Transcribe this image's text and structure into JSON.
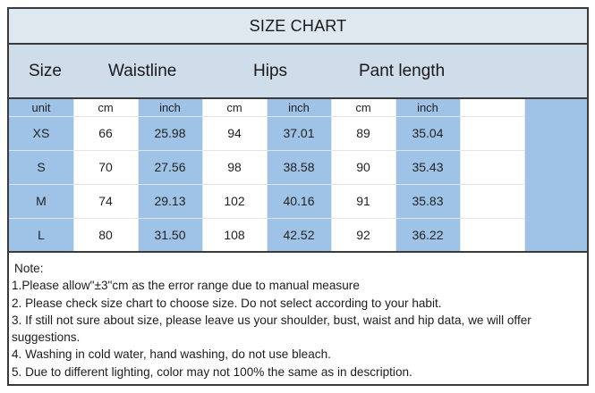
{
  "title": "SIZE CHART",
  "headers": {
    "size": "Size",
    "waistline": "Waistline",
    "hips": "Hips",
    "pant_length": "Pant length"
  },
  "unit_row": [
    "unit",
    "cm",
    "inch",
    "cm",
    "inch",
    "cm",
    "inch"
  ],
  "rows": [
    [
      "XS",
      "66",
      "25.98",
      "94",
      "37.01",
      "89",
      "35.04"
    ],
    [
      "S",
      "70",
      "27.56",
      "98",
      "38.58",
      "90",
      "35.43"
    ],
    [
      "M",
      "74",
      "29.13",
      "102",
      "40.16",
      "91",
      "35.83"
    ],
    [
      "L",
      "80",
      "31.50",
      "108",
      "42.52",
      "92",
      "36.22"
    ]
  ],
  "notes": {
    "heading": "Note:",
    "line1": "1.Please allow\"±3\"cm as the error range due to manual measure",
    "line2": "2. Please check size chart to choose size. Do not select according to your habit.",
    "line3a": "3. If still not sure about size, please leave us your shoulder, bust, waist and hip data, we will offer",
    "line3b": "suggestions.",
    "line4": "4. Washing in cold water, hand washing, do not use bleach.",
    "line5": "5. Due to different lighting, color may not 100% the same as in description."
  },
  "colors": {
    "title_bg": "#dfe7ef",
    "header_bg": "#cfdcea",
    "column_blue": "#9fc3e7",
    "border": "#3a3a3a"
  }
}
